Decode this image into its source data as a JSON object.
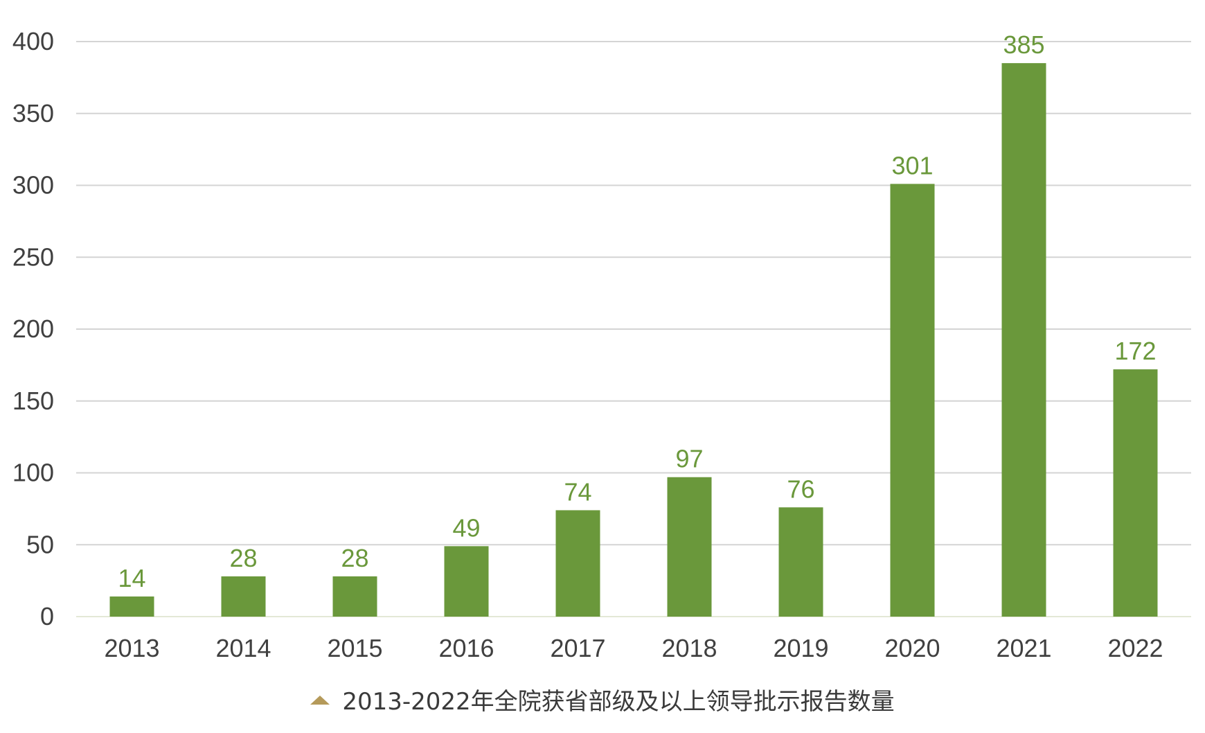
{
  "caption": {
    "text": "2013-2022年全院获省部级及以上领导批示报告数量",
    "marker_color": "#b59a5a"
  },
  "chart_data": {
    "type": "bar",
    "categories": [
      "2013",
      "2014",
      "2015",
      "2016",
      "2017",
      "2018",
      "2019",
      "2020",
      "2021",
      "2022"
    ],
    "values": [
      14,
      28,
      28,
      49,
      74,
      97,
      76,
      301,
      385,
      172
    ],
    "ylim": [
      0,
      400
    ],
    "yticks": [
      0,
      50,
      100,
      150,
      200,
      250,
      300,
      350,
      400
    ],
    "grid": true,
    "bar_color": "#6a983b",
    "label_color": "#6a983b",
    "tick_color": "#404040",
    "grid_color": "#d4d4d4",
    "title": "",
    "xlabel": "",
    "ylabel": ""
  }
}
